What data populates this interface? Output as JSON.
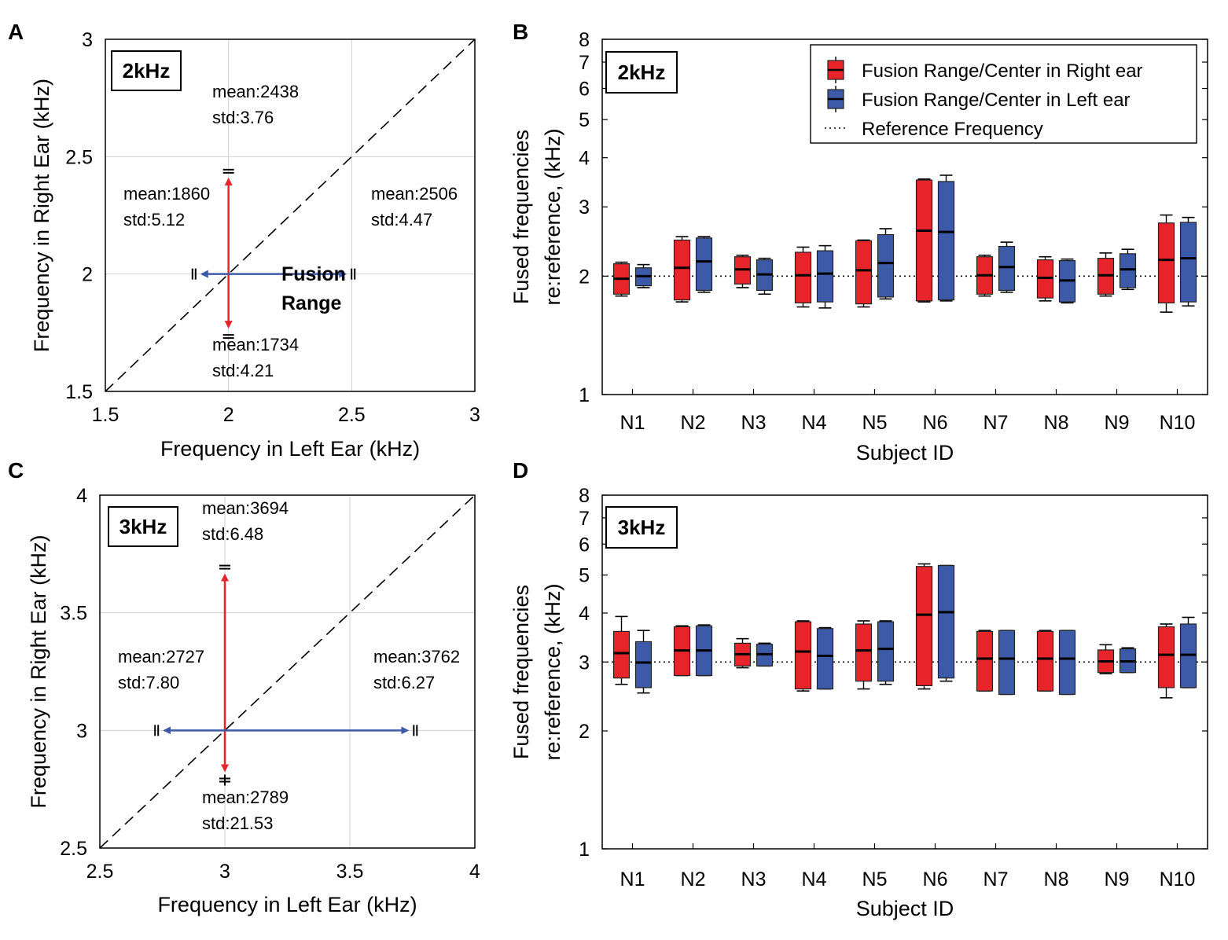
{
  "colors": {
    "right": "#e8242b",
    "left": "#3d5aa8",
    "arrow_red": "#e8242b",
    "arrow_blue": "#3d5aa8",
    "grid": "#d0d0d0"
  },
  "chart_data": [
    {
      "id": "A",
      "type": "scatter",
      "letter": "A",
      "badge": "2kHz",
      "xlabel": "Frequency in Left Ear (kHz)",
      "ylabel": "Frequency in Right Ear (kHz)",
      "xlim": [
        1.5,
        3
      ],
      "ylim": [
        1.5,
        3
      ],
      "xticks": [
        1.5,
        2,
        2.5,
        3
      ],
      "yticks": [
        1.5,
        2,
        2.5,
        3
      ],
      "xtick_labels": [
        "1.5",
        "2",
        "2.5",
        "3"
      ],
      "ytick_labels": [
        "1.5",
        "2",
        "2.5",
        "3"
      ],
      "center": [
        2.0,
        2.0
      ],
      "fusion_label": [
        "Fusion",
        "Range"
      ],
      "points": [
        {
          "name": "right-upper",
          "x": 2.0,
          "y": 2.438,
          "mean": "mean:2438",
          "std": "std:3.76"
        },
        {
          "name": "right-lower",
          "x": 2.0,
          "y": 1.734,
          "mean": "mean:1734",
          "std": "std:4.21"
        },
        {
          "name": "left-lower",
          "x": 1.86,
          "y": 2.0,
          "mean": "mean:1860",
          "std": "std:5.12"
        },
        {
          "name": "left-upper",
          "x": 2.506,
          "y": 2.0,
          "mean": "mean:2506",
          "std": "std:4.47"
        }
      ]
    },
    {
      "id": "C",
      "type": "scatter",
      "letter": "C",
      "badge": "3kHz",
      "xlabel": "Frequency in Left Ear (kHz)",
      "ylabel": "Frequency in Right Ear (kHz)",
      "xlim": [
        2.5,
        4
      ],
      "ylim": [
        2.5,
        4
      ],
      "xticks": [
        2.5,
        3,
        3.5,
        4
      ],
      "yticks": [
        2.5,
        3,
        3.5,
        4
      ],
      "xtick_labels": [
        "2.5",
        "3",
        "3.5",
        "4"
      ],
      "ytick_labels": [
        "2.5",
        "3",
        "3.5",
        "4"
      ],
      "center": [
        3.0,
        3.0
      ],
      "points": [
        {
          "name": "right-upper",
          "x": 3.0,
          "y": 3.694,
          "mean": "mean:3694",
          "std": "std:6.48"
        },
        {
          "name": "right-lower",
          "x": 3.0,
          "y": 2.789,
          "mean": "mean:2789",
          "std": "std:21.53"
        },
        {
          "name": "left-lower",
          "x": 2.727,
          "y": 3.0,
          "mean": "mean:2727",
          "std": "std:7.80"
        },
        {
          "name": "left-upper",
          "x": 3.762,
          "y": 3.0,
          "mean": "mean:3762",
          "std": "std:6.27"
        }
      ]
    },
    {
      "id": "B",
      "type": "box",
      "letter": "B",
      "badge": "2kHz",
      "xlabel": "Subject ID",
      "ylabel": [
        "Fused frequencies",
        "re:reference, (kHz)"
      ],
      "yscale": "log",
      "ylim": [
        1,
        8
      ],
      "yticks": [
        1,
        2,
        3,
        4,
        5,
        6,
        7,
        8
      ],
      "ytick_labels": [
        "1",
        "2",
        "3",
        "4",
        "5",
        "6",
        "7",
        "8"
      ],
      "reference": 2,
      "categories": [
        "N1",
        "N2",
        "N3",
        "N4",
        "N5",
        "N6",
        "N7",
        "N8",
        "N9",
        "N10"
      ],
      "legend": [
        "Fusion Range/Center in Right ear",
        "Fusion Range/Center in Left ear",
        "Reference Frequency"
      ],
      "series": [
        {
          "name": "Right ear",
          "boxes": [
            [
              1.78,
              1.8,
              1.97,
              2.15,
              2.17
            ],
            [
              1.72,
              1.74,
              2.1,
              2.47,
              2.52
            ],
            [
              1.87,
              1.91,
              2.08,
              2.24,
              2.26
            ],
            [
              1.67,
              1.71,
              2.01,
              2.3,
              2.37
            ],
            [
              1.67,
              1.7,
              2.07,
              2.46,
              2.47
            ],
            [
              1.72,
              1.73,
              2.61,
              3.51,
              3.53
            ],
            [
              1.78,
              1.8,
              2.01,
              2.24,
              2.26
            ],
            [
              1.73,
              1.76,
              1.98,
              2.2,
              2.24
            ],
            [
              1.78,
              1.8,
              2.01,
              2.22,
              2.29
            ],
            [
              1.62,
              1.71,
              2.2,
              2.73,
              2.86
            ]
          ]
        },
        {
          "name": "Left ear",
          "boxes": [
            [
              1.87,
              1.89,
              2.0,
              2.1,
              2.14
            ],
            [
              1.82,
              1.84,
              2.18,
              2.5,
              2.52
            ],
            [
              1.8,
              1.84,
              2.02,
              2.2,
              2.22
            ],
            [
              1.66,
              1.72,
              2.03,
              2.32,
              2.39
            ],
            [
              1.75,
              1.77,
              2.16,
              2.55,
              2.64
            ],
            [
              1.73,
              1.74,
              2.59,
              3.48,
              3.61
            ],
            [
              1.82,
              1.84,
              2.11,
              2.38,
              2.44
            ],
            [
              1.71,
              1.72,
              1.95,
              2.19,
              2.21
            ],
            [
              1.85,
              1.87,
              2.08,
              2.28,
              2.34
            ],
            [
              1.68,
              1.72,
              2.22,
              2.74,
              2.82
            ]
          ]
        }
      ]
    },
    {
      "id": "D",
      "type": "box",
      "letter": "D",
      "badge": "3kHz",
      "xlabel": "Subject ID",
      "ylabel": [
        "Fused frequencies",
        "re:reference, (kHz)"
      ],
      "yscale": "log",
      "ylim": [
        1,
        8
      ],
      "yticks": [
        1,
        2,
        3,
        4,
        5,
        6,
        7,
        8
      ],
      "ytick_labels": [
        "1",
        "2",
        "3",
        "4",
        "5",
        "6",
        "7",
        "8"
      ],
      "reference": 3,
      "categories": [
        "N1",
        "N2",
        "N3",
        "N4",
        "N5",
        "N6",
        "N7",
        "N8",
        "N9",
        "N10"
      ],
      "series": [
        {
          "name": "Right ear",
          "boxes": [
            [
              2.63,
              2.73,
              3.16,
              3.59,
              3.92
            ],
            [
              2.77,
              2.77,
              3.21,
              3.69,
              3.71
            ],
            [
              2.9,
              2.93,
              3.14,
              3.35,
              3.44
            ],
            [
              2.53,
              2.56,
              3.19,
              3.8,
              3.82
            ],
            [
              2.56,
              2.68,
              3.21,
              3.75,
              3.82
            ],
            [
              2.56,
              2.61,
              3.96,
              5.26,
              5.34
            ],
            [
              2.53,
              2.53,
              3.06,
              3.59,
              3.61
            ],
            [
              2.53,
              2.53,
              3.06,
              3.59,
              3.61
            ],
            [
              2.8,
              2.82,
              3.01,
              3.22,
              3.32
            ],
            [
              2.43,
              2.58,
              3.13,
              3.69,
              3.75
            ]
          ]
        },
        {
          "name": "Left ear",
          "boxes": [
            [
              2.5,
              2.58,
              2.99,
              3.38,
              3.61
            ],
            [
              2.77,
              2.77,
              3.21,
              3.71,
              3.73
            ],
            [
              2.93,
              2.93,
              3.14,
              3.33,
              3.35
            ],
            [
              2.56,
              2.56,
              3.11,
              3.65,
              3.67
            ],
            [
              2.63,
              2.68,
              3.24,
              3.8,
              3.82
            ],
            [
              2.68,
              2.73,
              4.02,
              5.29,
              5.29
            ],
            [
              2.48,
              2.48,
              3.06,
              3.61,
              3.61
            ],
            [
              2.48,
              2.48,
              3.06,
              3.61,
              3.61
            ],
            [
              2.82,
              2.82,
              3.01,
              3.24,
              3.26
            ],
            [
              2.58,
              2.58,
              3.13,
              3.75,
              3.9
            ]
          ]
        }
      ]
    }
  ]
}
